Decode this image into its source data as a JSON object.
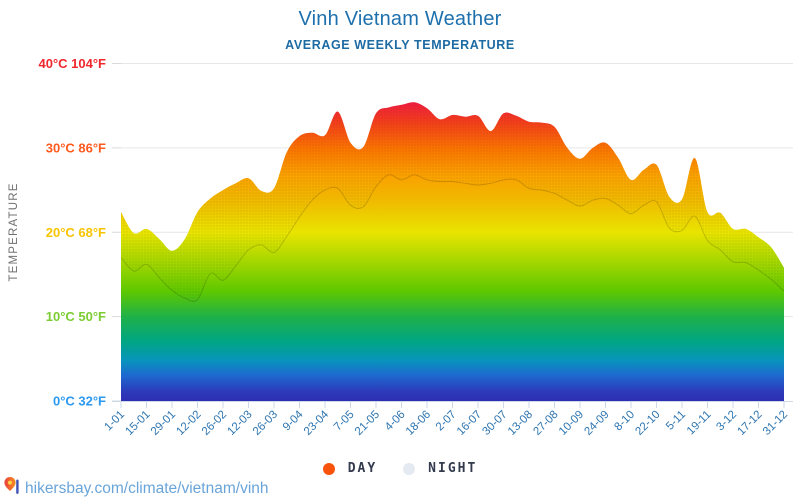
{
  "header": {
    "title": "Vinh Vietnam Weather",
    "subtitle": "AVERAGE WEEKLY TEMPERATURE"
  },
  "chart_data": {
    "type": "area",
    "title": "Vinh Vietnam Weather",
    "subtitle": "AVERAGE WEEKLY TEMPERATURE",
    "ylabel": "TEMPERATURE",
    "ylim_c": [
      0,
      40
    ],
    "grid": true,
    "legend_position": "bottom",
    "x": [
      "1-01",
      "8-01",
      "15-01",
      "22-01",
      "29-01",
      "5-02",
      "12-02",
      "19-02",
      "26-02",
      "5-03",
      "12-03",
      "19-03",
      "26-03",
      "2-04",
      "9-04",
      "16-04",
      "23-04",
      "30-04",
      "7-05",
      "14-05",
      "21-05",
      "28-05",
      "4-06",
      "11-06",
      "18-06",
      "25-06",
      "2-07",
      "9-07",
      "16-07",
      "23-07",
      "30-07",
      "6-08",
      "13-08",
      "20-08",
      "27-08",
      "3-09",
      "10-09",
      "17-09",
      "24-09",
      "1-10",
      "8-10",
      "15-10",
      "22-10",
      "29-10",
      "5-11",
      "12-11",
      "19-11",
      "26-11",
      "3-12",
      "10-12",
      "17-12",
      "24-12",
      "31-12"
    ],
    "x_tick_labels": [
      "1-01",
      "15-01",
      "29-01",
      "12-02",
      "26-02",
      "12-03",
      "26-03",
      "9-04",
      "23-04",
      "7-05",
      "21-05",
      "4-06",
      "18-06",
      "2-07",
      "16-07",
      "30-07",
      "13-08",
      "27-08",
      "10-09",
      "24-09",
      "8-10",
      "22-10",
      "5-11",
      "19-11",
      "3-12",
      "17-12",
      "31-12"
    ],
    "series": [
      {
        "name": "DAY",
        "color": "#f7530a",
        "values": [
          22.4,
          19.9,
          20.4,
          19.2,
          17.8,
          19.2,
          22.4,
          24.0,
          25.0,
          25.8,
          26.4,
          24.9,
          25.2,
          29.5,
          31.4,
          31.8,
          31.5,
          34.3,
          30.6,
          30.1,
          34.1,
          34.8,
          35.1,
          35.4,
          34.7,
          33.4,
          33.9,
          33.7,
          33.8,
          32.0,
          34.1,
          33.8,
          33.1,
          33.0,
          32.5,
          30.0,
          28.7,
          30.0,
          30.6,
          28.8,
          26.2,
          27.4,
          28.0,
          24.2,
          23.9,
          28.8,
          22.4,
          22.3,
          20.4,
          20.4,
          19.4,
          18.2,
          15.8
        ]
      },
      {
        "name": "NIGHT",
        "color": "#e4e9f2",
        "values": [
          17.0,
          15.4,
          16.2,
          14.6,
          13.1,
          12.2,
          12.0,
          15.1,
          14.3,
          16.0,
          17.9,
          18.5,
          17.6,
          19.5,
          21.8,
          23.8,
          25.0,
          25.2,
          23.2,
          23.0,
          25.4,
          26.8,
          26.2,
          26.8,
          26.2,
          26.0,
          26.0,
          25.8,
          25.6,
          25.8,
          26.2,
          26.2,
          25.2,
          25.0,
          24.6,
          23.8,
          23.1,
          23.8,
          24.0,
          23.2,
          22.2,
          23.2,
          23.6,
          20.5,
          20.2,
          21.9,
          19.0,
          17.9,
          16.5,
          16.4,
          15.5,
          14.4,
          13.0
        ]
      }
    ],
    "y_ticks": [
      {
        "temp_c": 0,
        "label": "0°C 32°F",
        "color": "#2b99f0"
      },
      {
        "temp_c": 10,
        "label": "10°C 50°F",
        "color": "#7ccd32"
      },
      {
        "temp_c": 20,
        "label": "20°C 68°F",
        "color": "#f7c400"
      },
      {
        "temp_c": 30,
        "label": "30°C 86°F",
        "color": "#ff5a1e"
      },
      {
        "temp_c": 40,
        "label": "40°C 104°F",
        "color": "#f0282d"
      }
    ],
    "gradient_stops": [
      [
        0.0,
        "#e50042"
      ],
      [
        0.11,
        "#ee1a43"
      ],
      [
        0.17,
        "#f23b1d"
      ],
      [
        0.255,
        "#fa7500"
      ],
      [
        0.33,
        "#faa000"
      ],
      [
        0.405,
        "#f0b900"
      ],
      [
        0.5,
        "#e9e400"
      ],
      [
        0.58,
        "#aad800"
      ],
      [
        0.675,
        "#5ec800"
      ],
      [
        0.75,
        "#1fb148"
      ],
      [
        0.825,
        "#00a585"
      ],
      [
        0.88,
        "#0894bc"
      ],
      [
        0.925,
        "#1e68cf"
      ],
      [
        0.97,
        "#2b3cbb"
      ],
      [
        1.0,
        "#2e2eb2"
      ]
    ],
    "axis_color": "#ccd9e8",
    "grid_color": "#e6e6e6",
    "x_label_color": "#2e75b0",
    "ylabel_color": "#707070"
  },
  "legend": {
    "items": [
      {
        "label": "DAY",
        "color": "#f7530a"
      },
      {
        "label": "NIGHT",
        "color": "#e4e9f2"
      }
    ]
  },
  "footer": {
    "url": "hikersbay.com/climate/vietnam/vinh"
  }
}
